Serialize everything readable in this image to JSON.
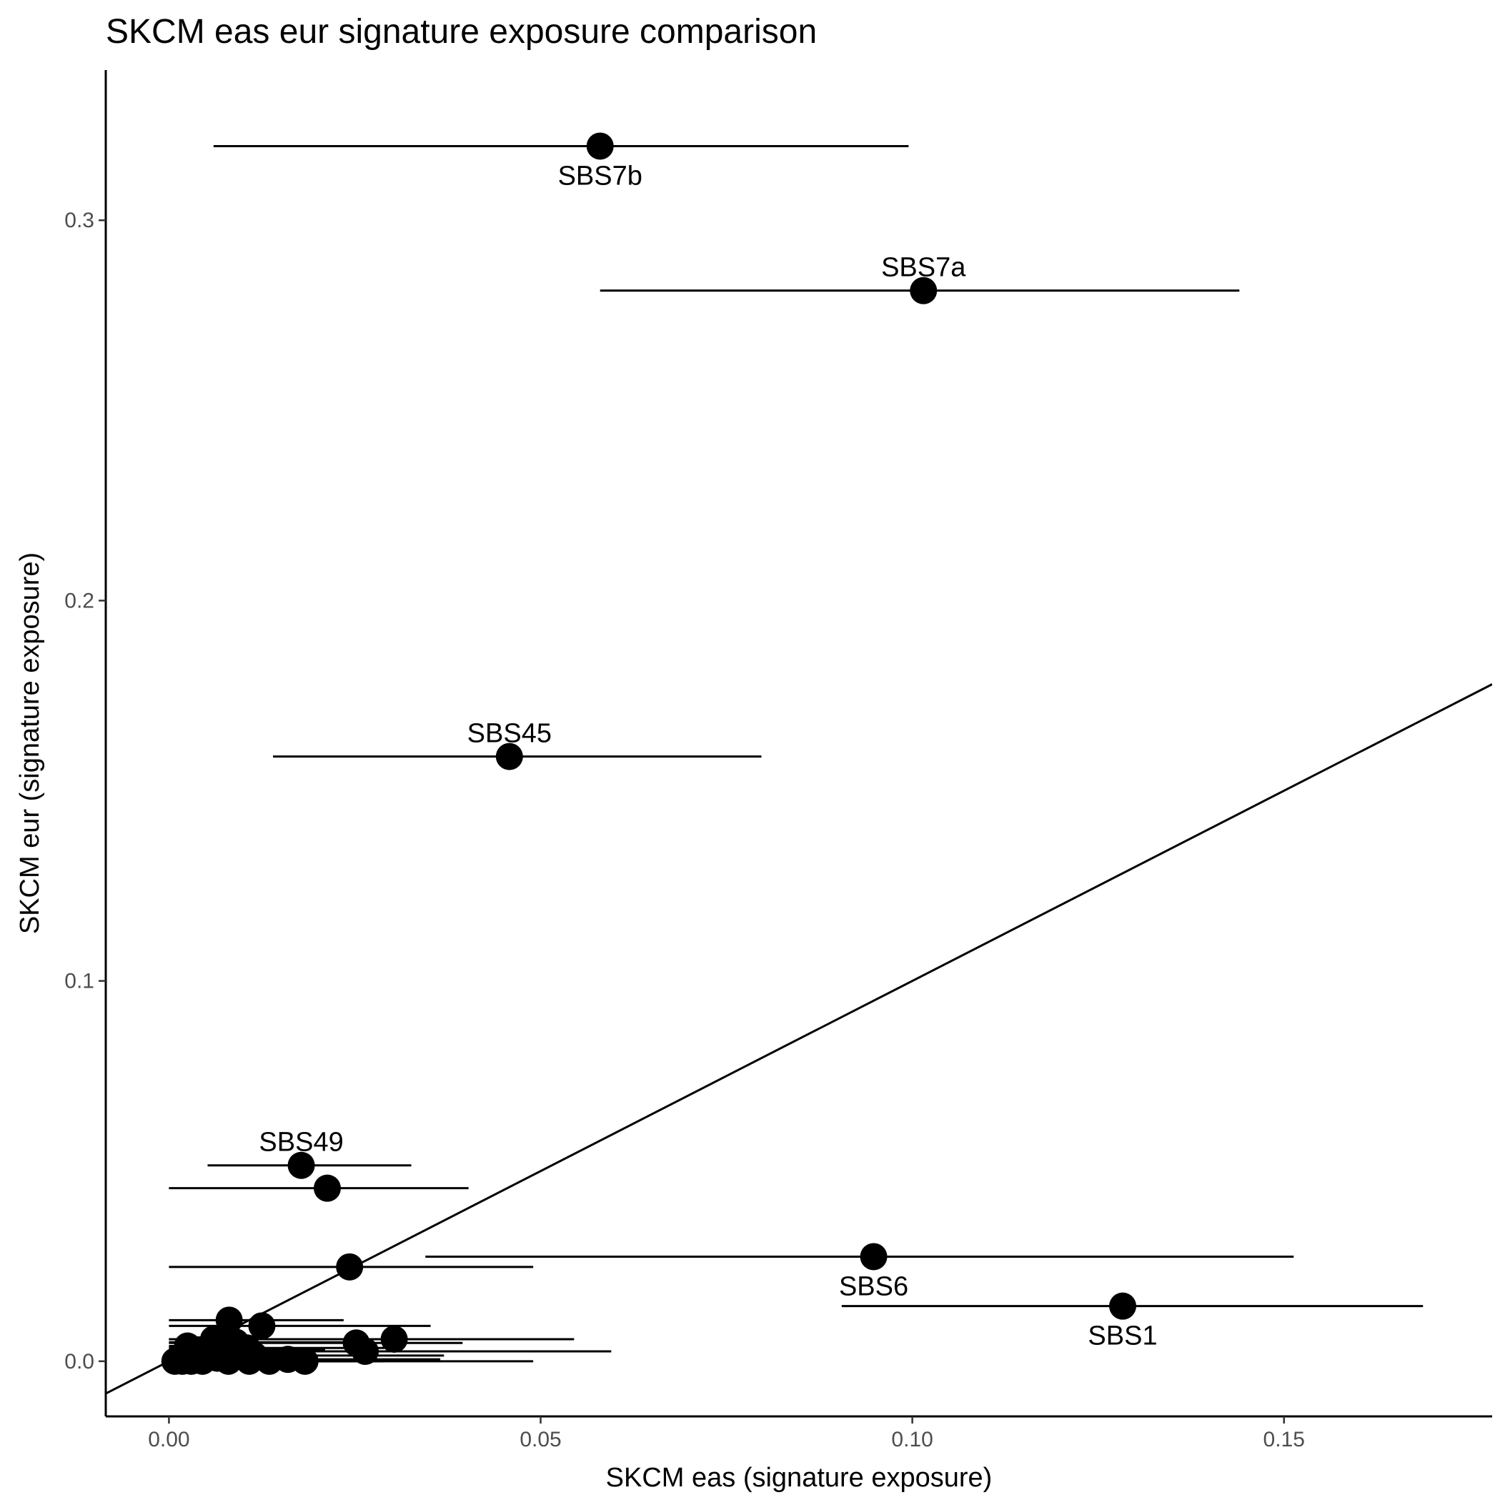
{
  "chart_data": {
    "type": "scatter",
    "title": "SKCM eas eur signature exposure comparison",
    "xlabel": "SKCM eas (signature exposure)",
    "ylabel": "SKCM eur (signature exposure)",
    "xlim": [
      -0.0085,
      0.178
    ],
    "ylim": [
      -0.0145,
      0.3395
    ],
    "xticks": [
      0.0,
      0.05,
      0.1,
      0.15
    ],
    "xtick_labels": [
      "0.00",
      "0.05",
      "0.10",
      "0.15"
    ],
    "yticks": [
      0.0,
      0.1,
      0.2,
      0.3
    ],
    "ytick_labels": [
      "0.0",
      "0.1",
      "0.2",
      "0.3"
    ],
    "grid": false,
    "reference_line": {
      "type": "identity",
      "slope": 1,
      "intercept": 0
    },
    "points": [
      {
        "label": "SBS7b",
        "x": 0.058,
        "y": 0.3195,
        "xmin": 0.006,
        "xmax": 0.0995,
        "label_pos": "below"
      },
      {
        "label": "SBS7a",
        "x": 0.1015,
        "y": 0.2815,
        "xmin": 0.058,
        "xmax": 0.144,
        "label_pos": "above"
      },
      {
        "label": "SBS45",
        "x": 0.0458,
        "y": 0.159,
        "xmin": 0.014,
        "xmax": 0.0797,
        "label_pos": "above"
      },
      {
        "label": "SBS49",
        "x": 0.0178,
        "y": 0.0515,
        "xmin": 0.0052,
        "xmax": 0.0326,
        "label_pos": "above"
      },
      {
        "label": "",
        "x": 0.0213,
        "y": 0.0455,
        "xmin": 0.0,
        "xmax": 0.0403
      },
      {
        "label": "",
        "x": 0.0243,
        "y": 0.0248,
        "xmin": 0.0,
        "xmax": 0.049
      },
      {
        "label": "SBS6",
        "x": 0.0948,
        "y": 0.0275,
        "xmin": 0.0345,
        "xmax": 0.1513,
        "label_pos": "below"
      },
      {
        "label": "SBS1",
        "x": 0.1283,
        "y": 0.0145,
        "xmin": 0.0905,
        "xmax": 0.1687,
        "label_pos": "below"
      },
      {
        "label": "",
        "x": 0.0081,
        "y": 0.0108,
        "xmin": 0.0,
        "xmax": 0.0235
      },
      {
        "label": "",
        "x": 0.0125,
        "y": 0.0093,
        "xmin": 0.0,
        "xmax": 0.0352
      },
      {
        "label": "",
        "x": 0.0303,
        "y": 0.0058,
        "xmin": 0.0,
        "xmax": 0.0545
      },
      {
        "label": "",
        "x": 0.0252,
        "y": 0.0048,
        "xmin": 0.0,
        "xmax": 0.0395
      },
      {
        "label": "",
        "x": 0.0264,
        "y": 0.0026,
        "xmin": 0.0,
        "xmax": 0.0595
      },
      {
        "label": "",
        "x": 0.006,
        "y": 0.0058,
        "xmin": 0.0,
        "xmax": 0.0215
      },
      {
        "label": "",
        "x": 0.004,
        "y": 0.003,
        "xmin": 0.0,
        "xmax": 0.021
      },
      {
        "label": "",
        "x": 0.0105,
        "y": 0.0035,
        "xmin": 0.0,
        "xmax": 0.029
      },
      {
        "label": "",
        "x": 0.0115,
        "y": 0.0015,
        "xmin": 0.0,
        "xmax": 0.037
      },
      {
        "label": "",
        "x": 0.016,
        "y": 0.0005,
        "xmin": 0.0,
        "xmax": 0.0365
      },
      {
        "label": "",
        "x": 0.0183,
        "y": 0.0,
        "xmin": 0.0,
        "xmax": 0.049
      },
      {
        "label": "",
        "x": 0.0135,
        "y": 0.0,
        "xmin": 0.0,
        "xmax": 0.029
      },
      {
        "label": "",
        "x": 0.0108,
        "y": 0.0,
        "xmin": 0.0,
        "xmax": 0.025
      },
      {
        "label": "",
        "x": 0.008,
        "y": 0.0,
        "xmin": 0.0,
        "xmax": 0.02
      },
      {
        "label": "",
        "x": 0.0065,
        "y": 0.0008,
        "xmin": 0.0,
        "xmax": 0.018
      },
      {
        "label": "",
        "x": 0.0045,
        "y": 0.0,
        "xmin": 0.0,
        "xmax": 0.015
      },
      {
        "label": "",
        "x": 0.003,
        "y": 0.0,
        "xmin": 0.0,
        "xmax": 0.012
      },
      {
        "label": "",
        "x": 0.0018,
        "y": 0.0,
        "xmin": 0.0,
        "xmax": 0.01
      },
      {
        "label": "",
        "x": 0.0008,
        "y": 0.0,
        "xmin": 0.0,
        "xmax": 0.008
      },
      {
        "label": "",
        "x": 0.0025,
        "y": 0.004,
        "xmin": 0.0,
        "xmax": 0.011
      },
      {
        "label": "",
        "x": 0.0055,
        "y": 0.002,
        "xmin": 0.0,
        "xmax": 0.016
      },
      {
        "label": "",
        "x": 0.009,
        "y": 0.005,
        "xmin": 0.0,
        "xmax": 0.026
      }
    ]
  }
}
